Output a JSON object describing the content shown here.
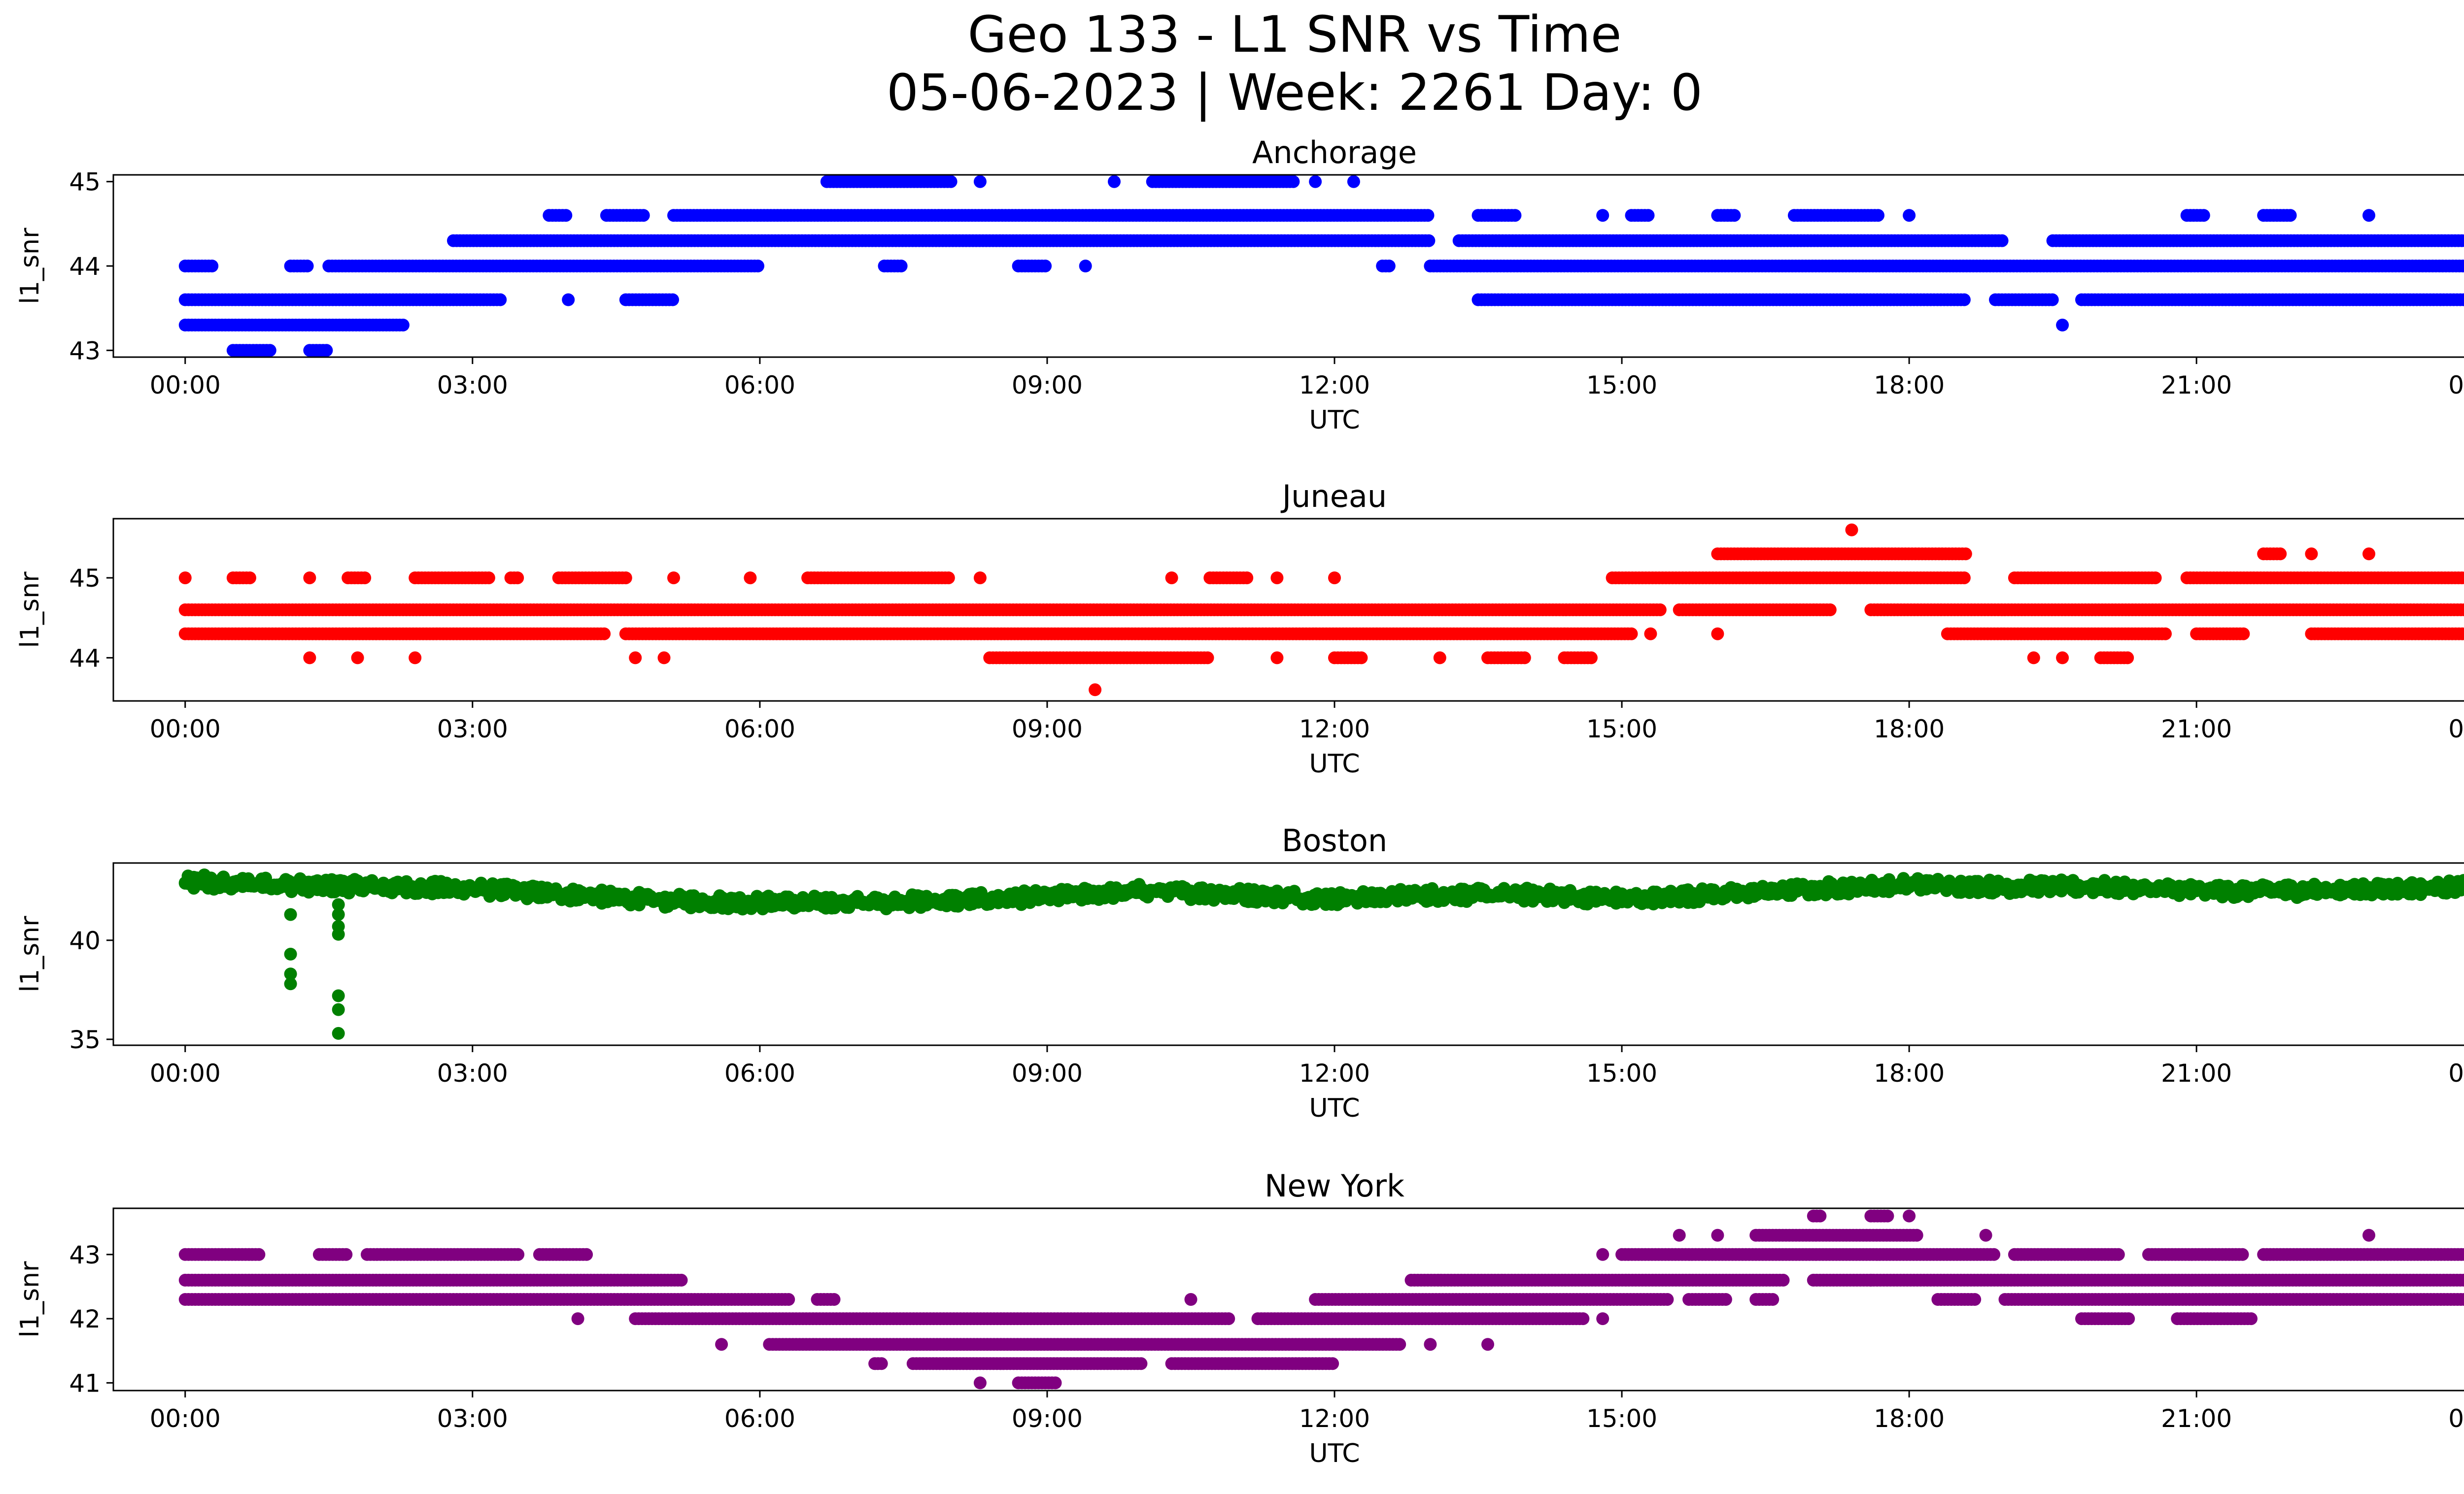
{
  "figure": {
    "title_line1": "Geo 133 - L1 SNR vs Time",
    "title_line2": "05-06-2023 | Week: 2261 Day: 0"
  },
  "chart_data": [
    {
      "type": "scatter",
      "title": "Anchorage",
      "xlabel": "UTC",
      "ylabel": "l1_snr",
      "color": "#0000ff",
      "xlim": [
        -0.75,
        24.75
      ],
      "ylim": [
        42.92,
        45.08
      ],
      "xticks": [
        "00:00",
        "03:00",
        "06:00",
        "09:00",
        "12:00",
        "15:00",
        "18:00",
        "21:00",
        "00:00"
      ],
      "yticks": [
        43,
        44,
        45
      ],
      "bands": [
        {
          "y": 43.6,
          "segments": [
            [
              0.0,
              3.3
            ],
            [
              4.0,
              4.0
            ],
            [
              4.6,
              5.1
            ],
            [
              13.5,
              18.6
            ],
            [
              18.9,
              19.5
            ],
            [
              19.8,
              24.0
            ]
          ]
        },
        {
          "y": 44.0,
          "segments": [
            [
              0.0,
              0.3
            ],
            [
              1.1,
              1.3
            ],
            [
              1.5,
              6.0
            ],
            [
              7.3,
              7.5
            ],
            [
              8.7,
              9.0
            ],
            [
              9.4,
              9.4
            ],
            [
              12.5,
              12.6
            ],
            [
              13.0,
              24.0
            ]
          ]
        },
        {
          "y": 44.3,
          "segments": [
            [
              2.8,
              13.0
            ],
            [
              13.3,
              19.0
            ],
            [
              19.5,
              24.0
            ]
          ]
        },
        {
          "y": 44.6,
          "segments": [
            [
              3.8,
              4.0
            ],
            [
              4.4,
              4.8
            ],
            [
              5.1,
              13.0
            ],
            [
              13.5,
              13.9
            ],
            [
              14.8,
              14.8
            ],
            [
              15.1,
              15.3
            ],
            [
              16.0,
              16.2
            ],
            [
              16.8,
              17.7
            ],
            [
              18.0,
              18.0
            ],
            [
              20.9,
              21.1
            ],
            [
              21.7,
              22.0
            ],
            [
              22.8,
              22.8
            ]
          ]
        },
        {
          "y": 45.0,
          "segments": [
            [
              6.7,
              8.0
            ],
            [
              8.3,
              8.3
            ],
            [
              9.7,
              9.7
            ],
            [
              10.1,
              11.6
            ],
            [
              11.8,
              11.8
            ],
            [
              12.2,
              12.2
            ]
          ]
        },
        {
          "y": 43.3,
          "segments": [
            [
              0.0,
              2.3
            ],
            [
              19.6,
              19.6
            ]
          ]
        },
        {
          "y": 43.0,
          "segments": [
            [
              0.5,
              0.9
            ],
            [
              1.3,
              1.5
            ]
          ]
        }
      ],
      "points": []
    },
    {
      "type": "scatter",
      "title": "Juneau",
      "xlabel": "UTC",
      "ylabel": "l1_snr",
      "color": "#ff0000",
      "xlim": [
        -0.75,
        24.75
      ],
      "ylim": [
        43.46,
        45.74
      ],
      "xticks": [
        "00:00",
        "03:00",
        "06:00",
        "09:00",
        "12:00",
        "15:00",
        "18:00",
        "21:00",
        "00:00"
      ],
      "yticks": [
        44,
        45
      ],
      "bands": [
        {
          "y": 44.6,
          "segments": [
            [
              0.0,
              15.4
            ],
            [
              15.6,
              17.2
            ],
            [
              17.6,
              24.0
            ]
          ]
        },
        {
          "y": 44.3,
          "segments": [
            [
              0.0,
              4.4
            ],
            [
              4.6,
              15.1
            ],
            [
              15.3,
              15.3
            ],
            [
              16.0,
              16.0
            ],
            [
              18.4,
              20.7
            ],
            [
              21.0,
              21.5
            ],
            [
              22.2,
              24.0
            ]
          ]
        },
        {
          "y": 45.0,
          "segments": [
            [
              0.0,
              0.0
            ],
            [
              0.5,
              0.7
            ],
            [
              1.3,
              1.3
            ],
            [
              1.7,
              1.9
            ],
            [
              2.4,
              3.2
            ],
            [
              3.4,
              3.5
            ],
            [
              3.9,
              4.6
            ],
            [
              5.1,
              5.1
            ],
            [
              5.9,
              5.9
            ],
            [
              6.5,
              8.0
            ],
            [
              8.3,
              8.3
            ],
            [
              10.3,
              10.3
            ],
            [
              10.7,
              11.1
            ],
            [
              11.4,
              11.4
            ],
            [
              12.0,
              12.0
            ],
            [
              14.9,
              18.6
            ],
            [
              19.1,
              20.6
            ],
            [
              20.9,
              24.0
            ]
          ]
        },
        {
          "y": 44.0,
          "segments": [
            [
              1.3,
              1.3
            ],
            [
              1.8,
              1.8
            ],
            [
              2.4,
              2.4
            ],
            [
              4.7,
              4.7
            ],
            [
              5.0,
              5.0
            ],
            [
              8.4,
              10.7
            ],
            [
              11.4,
              11.4
            ],
            [
              12.0,
              12.3
            ],
            [
              13.1,
              13.1
            ],
            [
              13.6,
              14.0
            ],
            [
              14.4,
              14.7
            ],
            [
              20.0,
              20.3
            ],
            [
              19.3,
              19.3
            ],
            [
              19.6,
              19.6
            ],
            [
              23.9,
              24.0
            ]
          ]
        },
        {
          "y": 45.3,
          "segments": [
            [
              16.0,
              18.6
            ],
            [
              21.7,
              21.9
            ],
            [
              22.2,
              22.2
            ],
            [
              22.8,
              22.8
            ]
          ]
        }
      ],
      "points": [
        [
          9.5,
          43.6
        ],
        [
          17.4,
          45.6
        ]
      ]
    },
    {
      "type": "scatter",
      "title": "Boston",
      "xlabel": "UTC",
      "ylabel": "l1_snr",
      "color": "#008000",
      "xlim": [
        -0.75,
        24.75
      ],
      "ylim": [
        34.7,
        43.9
      ],
      "xticks": [
        "00:00",
        "03:00",
        "06:00",
        "09:00",
        "12:00",
        "15:00",
        "18:00",
        "21:00",
        "00:00"
      ],
      "yticks": [
        35,
        40
      ],
      "curve": {
        "t": [
          0,
          1,
          2,
          3,
          4,
          5,
          6,
          7,
          8,
          9,
          10,
          11,
          12,
          13,
          14,
          15,
          16,
          17,
          18,
          19,
          20,
          21,
          22,
          23,
          24
        ],
        "y": [
          42.8,
          42.7,
          42.6,
          42.5,
          42.2,
          41.9,
          41.8,
          41.8,
          41.9,
          42.1,
          42.4,
          42.2,
          42.0,
          42.2,
          42.2,
          42.0,
          42.2,
          42.5,
          42.7,
          42.6,
          42.6,
          42.4,
          42.4,
          42.5,
          42.6
        ]
      },
      "points": [
        [
          1.1,
          41.3
        ],
        [
          1.1,
          39.3
        ],
        [
          1.1,
          38.3
        ],
        [
          1.1,
          37.8
        ],
        [
          1.6,
          41.8
        ],
        [
          1.6,
          41.3
        ],
        [
          1.6,
          40.7
        ],
        [
          1.6,
          40.3
        ],
        [
          1.6,
          37.2
        ],
        [
          1.6,
          36.5
        ],
        [
          1.6,
          35.3
        ],
        [
          0.2,
          43.3
        ],
        [
          0.4,
          43.2
        ],
        [
          0.8,
          43.1
        ]
      ]
    },
    {
      "type": "scatter",
      "title": "New York",
      "xlabel": "UTC",
      "ylabel": "l1_snr",
      "color": "#800080",
      "xlim": [
        -0.75,
        24.75
      ],
      "ylim": [
        40.88,
        43.72
      ],
      "xticks": [
        "00:00",
        "03:00",
        "06:00",
        "09:00",
        "12:00",
        "15:00",
        "18:00",
        "21:00",
        "00:00"
      ],
      "yticks": [
        41,
        42,
        43
      ],
      "bands": [
        {
          "y": 42.6,
          "segments": [
            [
              0.0,
              5.2
            ],
            [
              12.8,
              16.7
            ],
            [
              17.0,
              24.0
            ]
          ]
        },
        {
          "y": 42.3,
          "segments": [
            [
              0.0,
              6.3
            ],
            [
              6.6,
              6.8
            ],
            [
              11.8,
              15.5
            ],
            [
              15.7,
              16.1
            ],
            [
              16.4,
              16.6
            ],
            [
              18.3,
              18.7
            ],
            [
              19.0,
              24.0
            ]
          ]
        },
        {
          "y": 43.0,
          "segments": [
            [
              0.0,
              0.8
            ],
            [
              1.4,
              1.7
            ],
            [
              1.9,
              3.5
            ],
            [
              3.7,
              4.2
            ],
            [
              14.8,
              14.8
            ],
            [
              15.0,
              18.9
            ],
            [
              19.1,
              20.2
            ],
            [
              20.5,
              21.5
            ],
            [
              21.7,
              24.0
            ]
          ]
        },
        {
          "y": 42.0,
          "segments": [
            [
              4.1,
              4.1
            ],
            [
              4.7,
              10.9
            ],
            [
              11.2,
              14.6
            ],
            [
              14.8,
              14.8
            ],
            [
              19.8,
              20.3
            ],
            [
              20.8,
              21.6
            ]
          ]
        },
        {
          "y": 41.6,
          "segments": [
            [
              5.6,
              5.6
            ],
            [
              6.1,
              12.7
            ],
            [
              13.0,
              13.0
            ],
            [
              13.6,
              13.6
            ]
          ]
        },
        {
          "y": 41.3,
          "segments": [
            [
              7.2,
              7.3
            ],
            [
              7.6,
              10.0
            ],
            [
              10.3,
              12.0
            ]
          ]
        },
        {
          "y": 41.0,
          "segments": [
            [
              8.3,
              8.3
            ],
            [
              8.7,
              9.1
            ]
          ]
        },
        {
          "y": 43.3,
          "segments": [
            [
              15.6,
              15.6
            ],
            [
              16.0,
              16.0
            ],
            [
              16.4,
              18.1
            ],
            [
              18.8,
              18.8
            ],
            [
              22.8,
              22.8
            ]
          ]
        },
        {
          "y": 43.6,
          "segments": [
            [
              17.0,
              17.1
            ],
            [
              17.6,
              17.8
            ],
            [
              18.0,
              18.0
            ]
          ]
        }
      ],
      "points": [
        [
          17.6,
          42.6
        ],
        [
          10.5,
          42.3
        ]
      ]
    }
  ]
}
